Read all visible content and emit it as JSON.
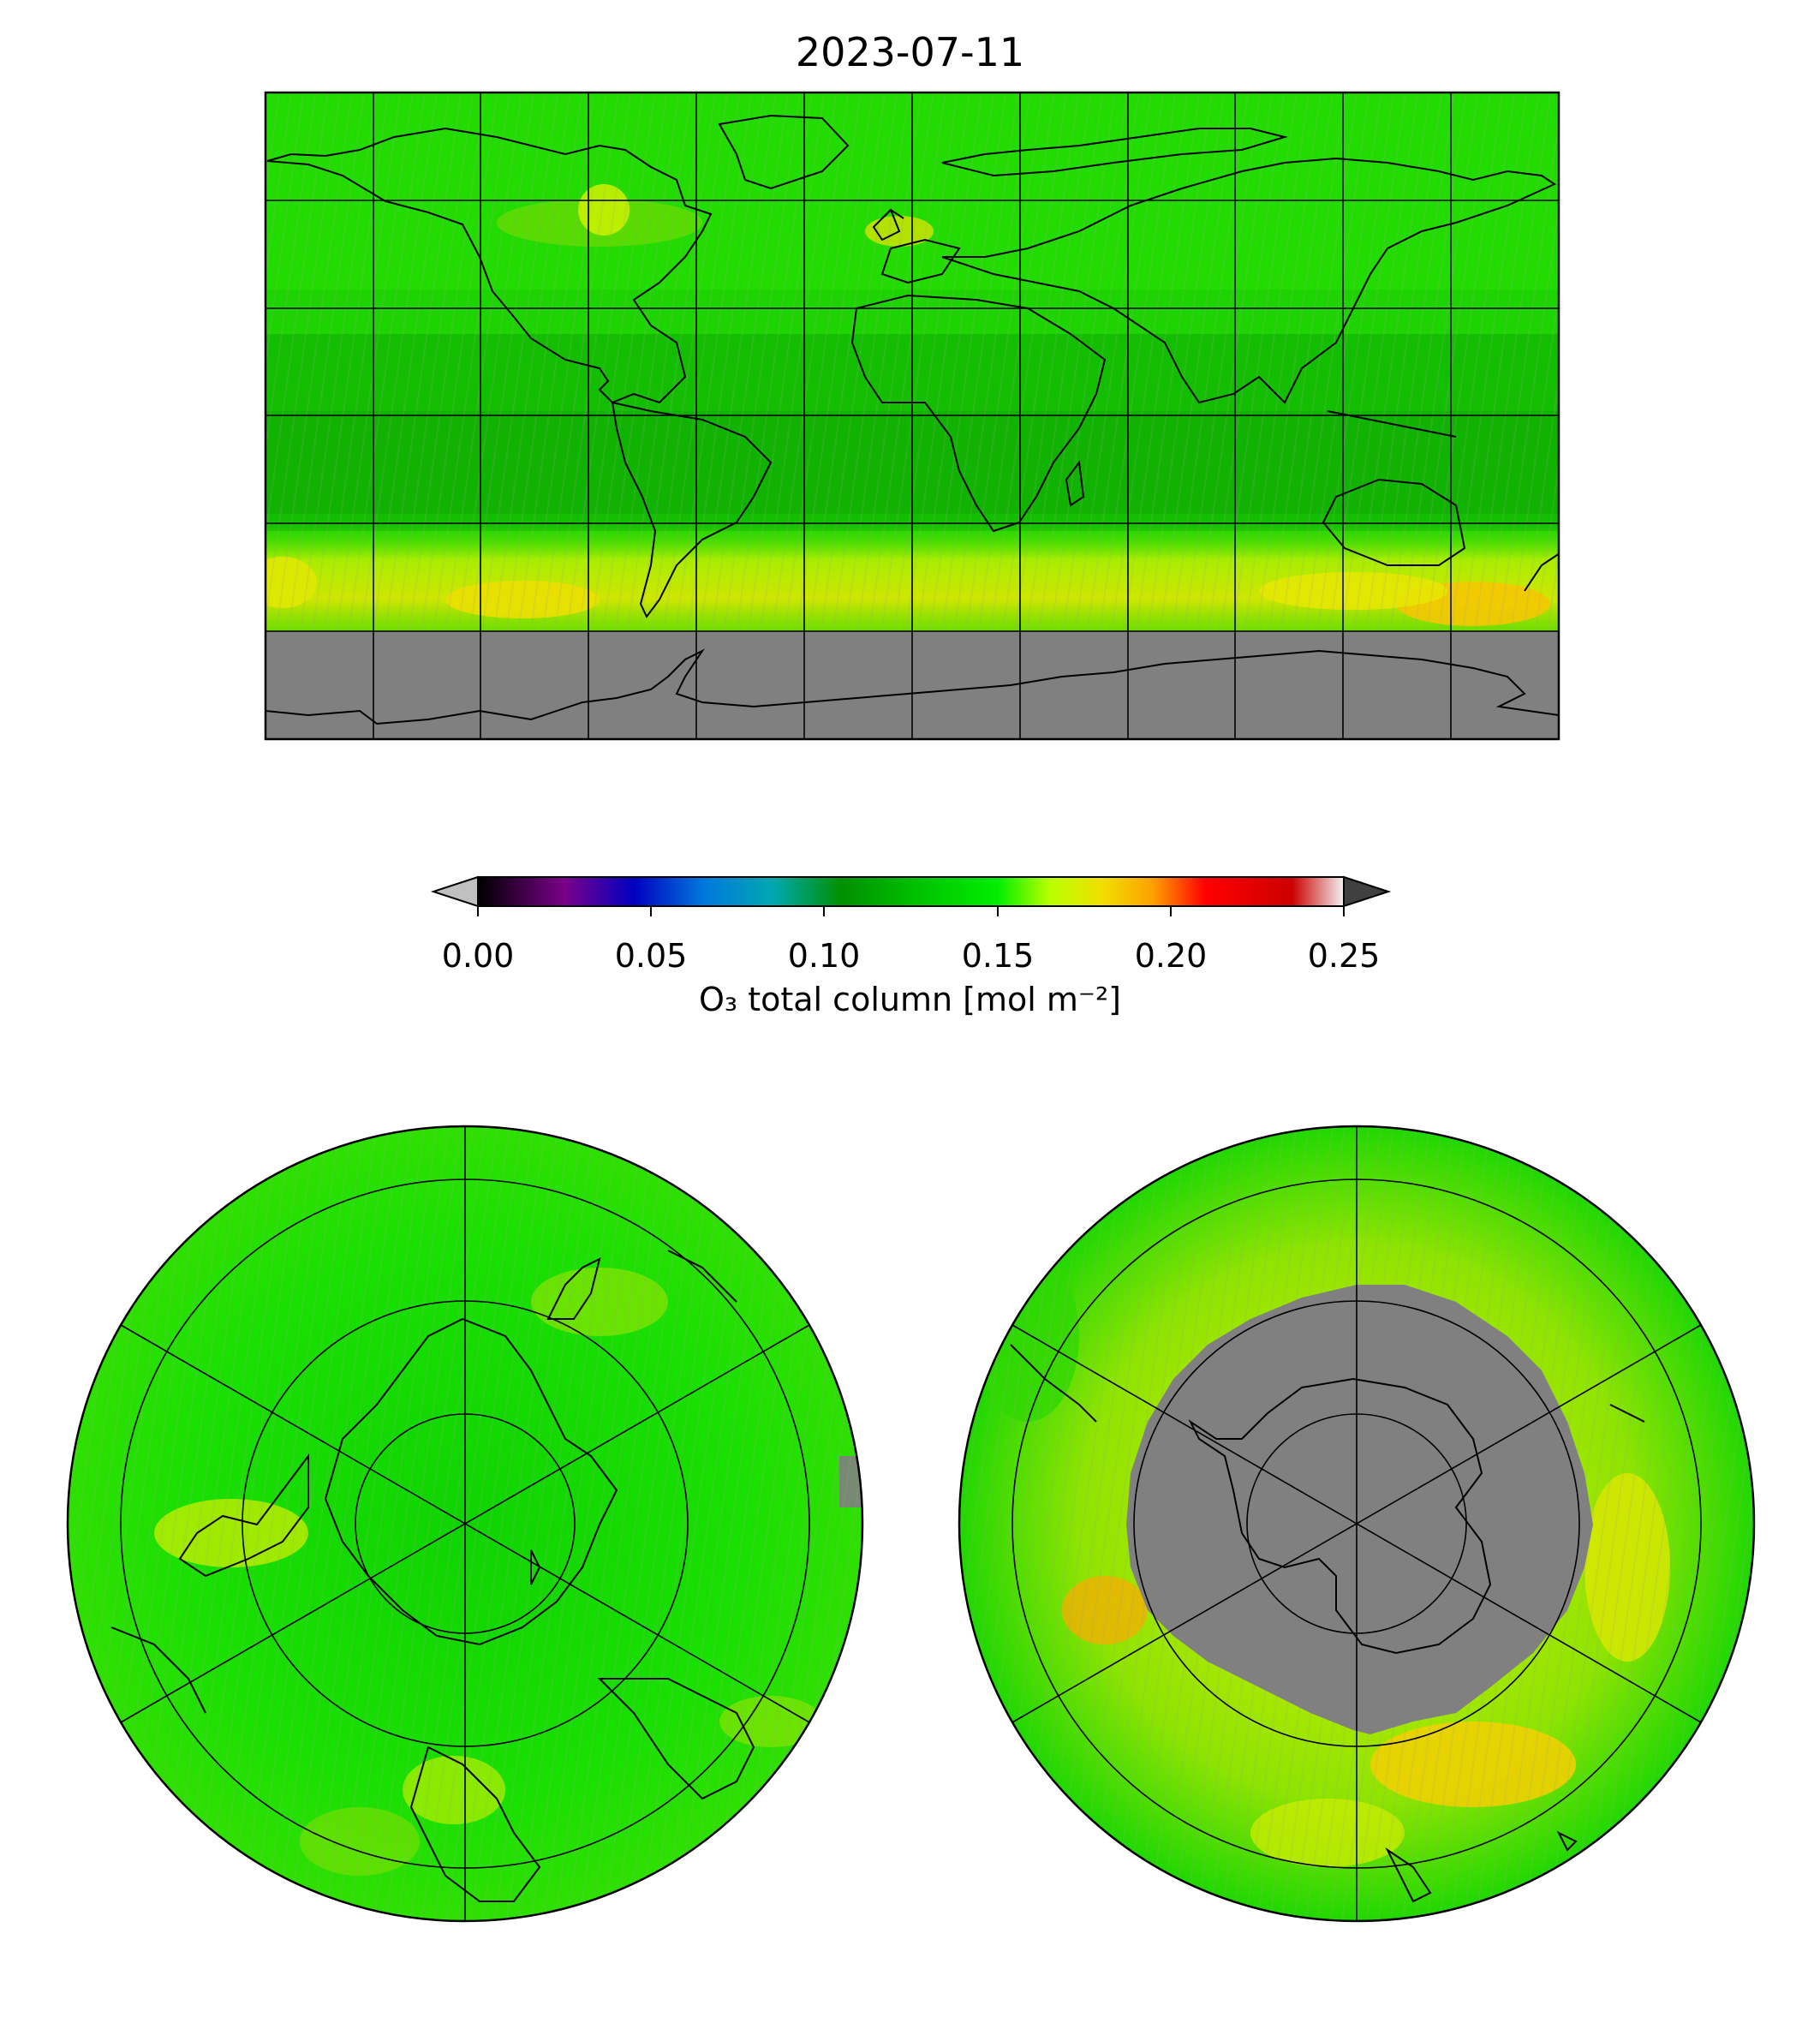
{
  "figure": {
    "title": "2023-07-11"
  },
  "colorbar": {
    "label": "O₃ total column [mol m⁻²]",
    "ticks": [
      "0.00",
      "0.05",
      "0.10",
      "0.15",
      "0.20",
      "0.25"
    ],
    "range": [
      0.0,
      0.25
    ],
    "extend": "both",
    "under_color": "#c0c0c0",
    "over_color": "#404040",
    "stops": [
      {
        "v": 0.0,
        "c": "#000000"
      },
      {
        "v": 0.025,
        "c": "#7a008a"
      },
      {
        "v": 0.045,
        "c": "#0000c0"
      },
      {
        "v": 0.065,
        "c": "#0077dd"
      },
      {
        "v": 0.085,
        "c": "#00a8b0"
      },
      {
        "v": 0.105,
        "c": "#009000"
      },
      {
        "v": 0.13,
        "c": "#00c800"
      },
      {
        "v": 0.15,
        "c": "#00ee00"
      },
      {
        "v": 0.165,
        "c": "#b8ff00"
      },
      {
        "v": 0.18,
        "c": "#f0e000"
      },
      {
        "v": 0.195,
        "c": "#ffa000"
      },
      {
        "v": 0.21,
        "c": "#ff0000"
      },
      {
        "v": 0.235,
        "c": "#cc0000"
      },
      {
        "v": 0.25,
        "c": "#f2f2f2"
      }
    ]
  },
  "panels": [
    {
      "name": "global",
      "projection": "equirectangular",
      "missing_color": "#808080",
      "graticule_lon_step": 30,
      "graticule_lat_step": 30
    },
    {
      "name": "north-polar",
      "projection": "north polar stereographic",
      "missing_color": "#808080"
    },
    {
      "name": "south-polar",
      "projection": "south polar stereographic",
      "missing_color": "#808080"
    }
  ]
}
